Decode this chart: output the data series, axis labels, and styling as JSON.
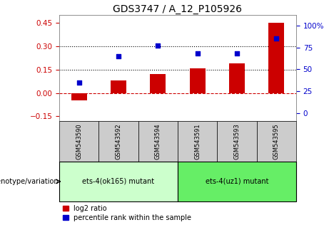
{
  "title": "GDS3747 / A_12_P105926",
  "samples": [
    "GSM543590",
    "GSM543592",
    "GSM543594",
    "GSM543591",
    "GSM543593",
    "GSM543595"
  ],
  "log2_ratio": [
    -0.05,
    0.08,
    0.12,
    0.16,
    0.19,
    0.45
  ],
  "percentile_rank": [
    35,
    65,
    77,
    68,
    68,
    85
  ],
  "bar_color": "#cc0000",
  "dot_color": "#0000cc",
  "ylim_left": [
    -0.18,
    0.5
  ],
  "ylim_right": [
    -9,
    112
  ],
  "yticks_left": [
    -0.15,
    0.0,
    0.15,
    0.3,
    0.45
  ],
  "yticks_right": [
    0,
    25,
    50,
    75,
    100
  ],
  "ytick_right_labels": [
    "0",
    "25",
    "50",
    "75",
    "100%"
  ],
  "hline_zero_color": "#cc0000",
  "hline_other_color": "#000000",
  "group1_label": "ets-4(ok165) mutant",
  "group2_label": "ets-4(uz1) mutant",
  "group1_indices": [
    0,
    1,
    2
  ],
  "group2_indices": [
    3,
    4,
    5
  ],
  "group1_bg": "#ccffcc",
  "group2_bg": "#66ee66",
  "sample_box_bg": "#cccccc",
  "genotype_label": "genotype/variation",
  "legend_bar_label": "log2 ratio",
  "legend_dot_label": "percentile rank within the sample",
  "title_fontsize": 10,
  "tick_fontsize": 7.5,
  "label_fontsize": 7.5,
  "bar_width": 0.4
}
